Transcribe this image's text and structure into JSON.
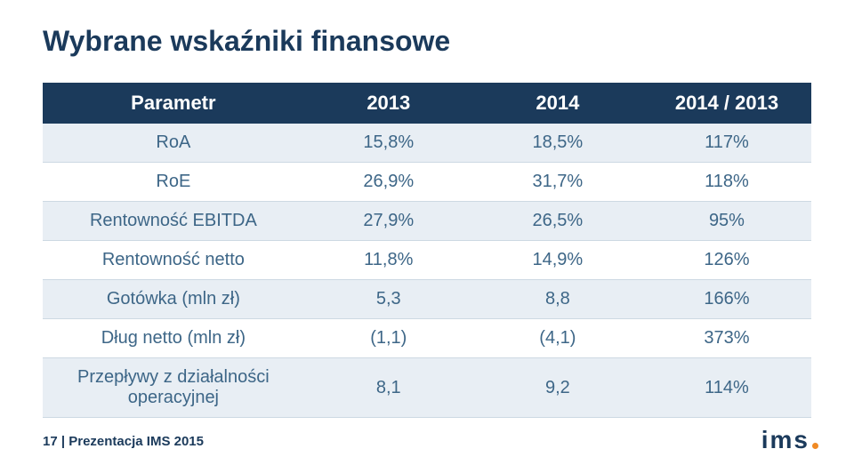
{
  "title": "Wybrane wskaźniki finansowe",
  "table": {
    "columns": [
      "Parametr",
      "2013",
      "2014",
      "2014 / 2013"
    ],
    "rows": [
      [
        "RoA",
        "15,8%",
        "18,5%",
        "117%"
      ],
      [
        "RoE",
        "26,9%",
        "31,7%",
        "118%"
      ],
      [
        "Rentowność EBITDA",
        "27,9%",
        "26,5%",
        "95%"
      ],
      [
        "Rentowność netto",
        "11,8%",
        "14,9%",
        "126%"
      ],
      [
        "Gotówka (mln zł)",
        "5,3",
        "8,8",
        "166%"
      ],
      [
        "Dług netto (mln zł)",
        "(1,1)",
        "(4,1)",
        "373%"
      ],
      [
        "Przepływy z działalności operacyjnej",
        "8,1",
        "9,2",
        "114%"
      ]
    ]
  },
  "footer": {
    "page": "17",
    "sep": "|",
    "label": "Prezentacja IMS 2015"
  },
  "logo": {
    "text": "ims",
    "accent_color": "#f08a24"
  },
  "colors": {
    "heading": "#1b3a5b",
    "header_bg": "#1b3a5b",
    "header_fg": "#ffffff",
    "cell_fg": "#3d6687",
    "row_odd_bg": "#e8eef4",
    "row_even_bg": "#ffffff",
    "border": "#cdd9e3"
  }
}
